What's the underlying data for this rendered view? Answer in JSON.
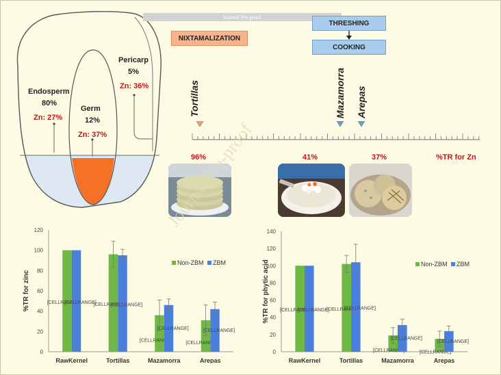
{
  "watermark_banner": "Journal Pre-proof",
  "watermark_diagonal": "Journal Pre-proof",
  "process": {
    "nixtamalization": "NIXTAMALIZATION",
    "threshing": "THRESHING",
    "cooking": "COOKING"
  },
  "kernel": {
    "pericarp": {
      "name": "Pericarp",
      "share": "5%",
      "zn": "Zn: 36%"
    },
    "endosperm": {
      "name": "Endosperm",
      "share": "80%",
      "zn": "Zn: 27%"
    },
    "germ": {
      "name": "Germ",
      "share": "12%",
      "zn": "Zn: 37%"
    }
  },
  "scale": {
    "products": [
      "Tortillas",
      "Mazamorra",
      "Arepas"
    ],
    "values": [
      "96%",
      "41%",
      "37%"
    ],
    "axis_label": "%TR for Zn"
  },
  "colors": {
    "green": "#6fb845",
    "blue": "#4a7fdc",
    "orange": "#f47125",
    "red": "#c0161b",
    "marker_orange": "#f5a060",
    "marker_blue": "#5ea3dc"
  },
  "chart_data": [
    {
      "type": "bar",
      "categories": [
        "RawKernel",
        "Tortillas",
        "Mazamorra",
        "Arepas"
      ],
      "series": [
        {
          "name": "Non-ZBM",
          "values": [
            100,
            96,
            36,
            31
          ],
          "errors": [
            0,
            13,
            15,
            15
          ]
        },
        {
          "name": "ZBM",
          "values": [
            100,
            95,
            46,
            42
          ],
          "errors": [
            0,
            6,
            6,
            7
          ]
        }
      ],
      "bar_labels": [
        [
          "[CELLRANGE]",
          "[CELLRANGE]",
          "[CELLRANGE]",
          "[CELLRANGE]"
        ],
        [
          "[CELLRANGE]",
          "[CELLRANGE]",
          "[CELLRANGE]",
          "[CELLRANGE]"
        ]
      ],
      "title": "",
      "xlabel": "",
      "ylabel": "%TR for zinc",
      "ylim": [
        0,
        120
      ],
      "yticks": [
        "0",
        "20",
        "40",
        "60",
        "80",
        "100",
        "120"
      ],
      "grid": false,
      "legend": "right"
    },
    {
      "type": "bar",
      "categories": [
        "RawKernel",
        "Tortillas",
        "Mazamorra",
        "Arepas"
      ],
      "series": [
        {
          "name": "Non-ZBM",
          "values": [
            100,
            102,
            19,
            15
          ],
          "errors": [
            0,
            10,
            9,
            9
          ]
        },
        {
          "name": "ZBM",
          "values": [
            100,
            104,
            31,
            24
          ],
          "errors": [
            0,
            21,
            7,
            6
          ]
        }
      ],
      "bar_labels": [
        [
          "[CELLRANGE]",
          "[CELLRANGE]",
          "[CELLRANGE]",
          "[CELLRANGE]"
        ],
        [
          "[CELLRANGE]",
          "[CELLRANGE]",
          "[CELLRANGE]",
          "[CELLRANGE]"
        ]
      ],
      "title": "",
      "xlabel": "",
      "ylabel": "%TR for phytic acid",
      "ylim": [
        0,
        140
      ],
      "yticks": [
        "0",
        "20",
        "40",
        "60",
        "80",
        "100",
        "120",
        "140"
      ],
      "grid": false,
      "legend": "right"
    }
  ]
}
